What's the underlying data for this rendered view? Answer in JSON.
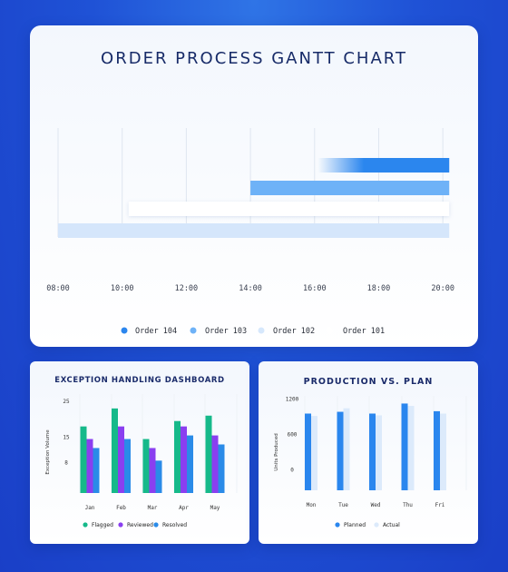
{
  "gantt": {
    "title": "ORDER PROCESS GANTT CHART",
    "chart_data": {
      "type": "gantt",
      "x_ticks": [
        "08:00",
        "10:00",
        "12:00",
        "14:00",
        "16:00",
        "18:00",
        "20:00"
      ],
      "x_range": [
        8,
        20.25
      ],
      "tasks": [
        {
          "name": "Order 104",
          "start": 16.1,
          "end": 20.2,
          "color": "#2b86ee"
        },
        {
          "name": "Order 103",
          "start": 14.0,
          "end": 20.2,
          "color": "#6eb2f7"
        },
        {
          "name": "Order 102",
          "start": 10.2,
          "end": 20.2,
          "color": "#ffffff"
        },
        {
          "name": "Order 101",
          "start": 8.0,
          "end": 20.2,
          "color": "#d5e6fb"
        }
      ],
      "legend": [
        {
          "name": "Order 104",
          "color": "#2b86ee"
        },
        {
          "name": "Order 103",
          "color": "#6eb2f7"
        },
        {
          "name": "Order 102",
          "color": "#d6e8fc"
        },
        {
          "name": "Order 101",
          "color": "#ffffff"
        }
      ],
      "legend_placement": "bottom",
      "grid": true
    }
  },
  "exceptions": {
    "title": "EXCEPTION HANDLING DASHBOARD",
    "chart_data": {
      "type": "bar",
      "categories": [
        "Jan",
        "Feb",
        "Mar",
        "Apr",
        "May"
      ],
      "ylabel": "Exception Volume",
      "y_ticks": [
        "25",
        "15",
        "8"
      ],
      "y_tick_values": [
        25,
        15,
        8
      ],
      "ylim": [
        -0.5,
        27
      ],
      "series": [
        {
          "name": "Flagged",
          "color": "#16b98a",
          "values": [
            18,
            23,
            14.5,
            19.5,
            21
          ]
        },
        {
          "name": "Reviewed",
          "color": "#8a3ff0",
          "values": [
            14.5,
            18,
            12,
            18,
            15.5
          ]
        },
        {
          "name": "Resolved",
          "color": "#2a8be8",
          "values": [
            12,
            14.5,
            8.5,
            15.5,
            13
          ]
        }
      ],
      "legend_placement": "bottom"
    }
  },
  "production": {
    "title": "PRODUCTION VS. PLAN",
    "chart_data": {
      "type": "bar",
      "categories": [
        "Mon",
        "Tue",
        "Wed",
        "Thu",
        "Fri"
      ],
      "ylabel": "Units Produced",
      "y_ticks": [
        "1200",
        "600",
        "0"
      ],
      "y_tick_values": [
        1200,
        600,
        0
      ],
      "ylim": [
        -350,
        1250
      ],
      "series": [
        {
          "name": "Planned",
          "color": "#2a86ee",
          "values": [
            950,
            980,
            950,
            1120,
            990
          ]
        },
        {
          "name": "Actual",
          "color": "#dceafb",
          "values": [
            910,
            1040,
            920,
            1080,
            950
          ]
        }
      ],
      "legend_placement": "bottom"
    }
  }
}
